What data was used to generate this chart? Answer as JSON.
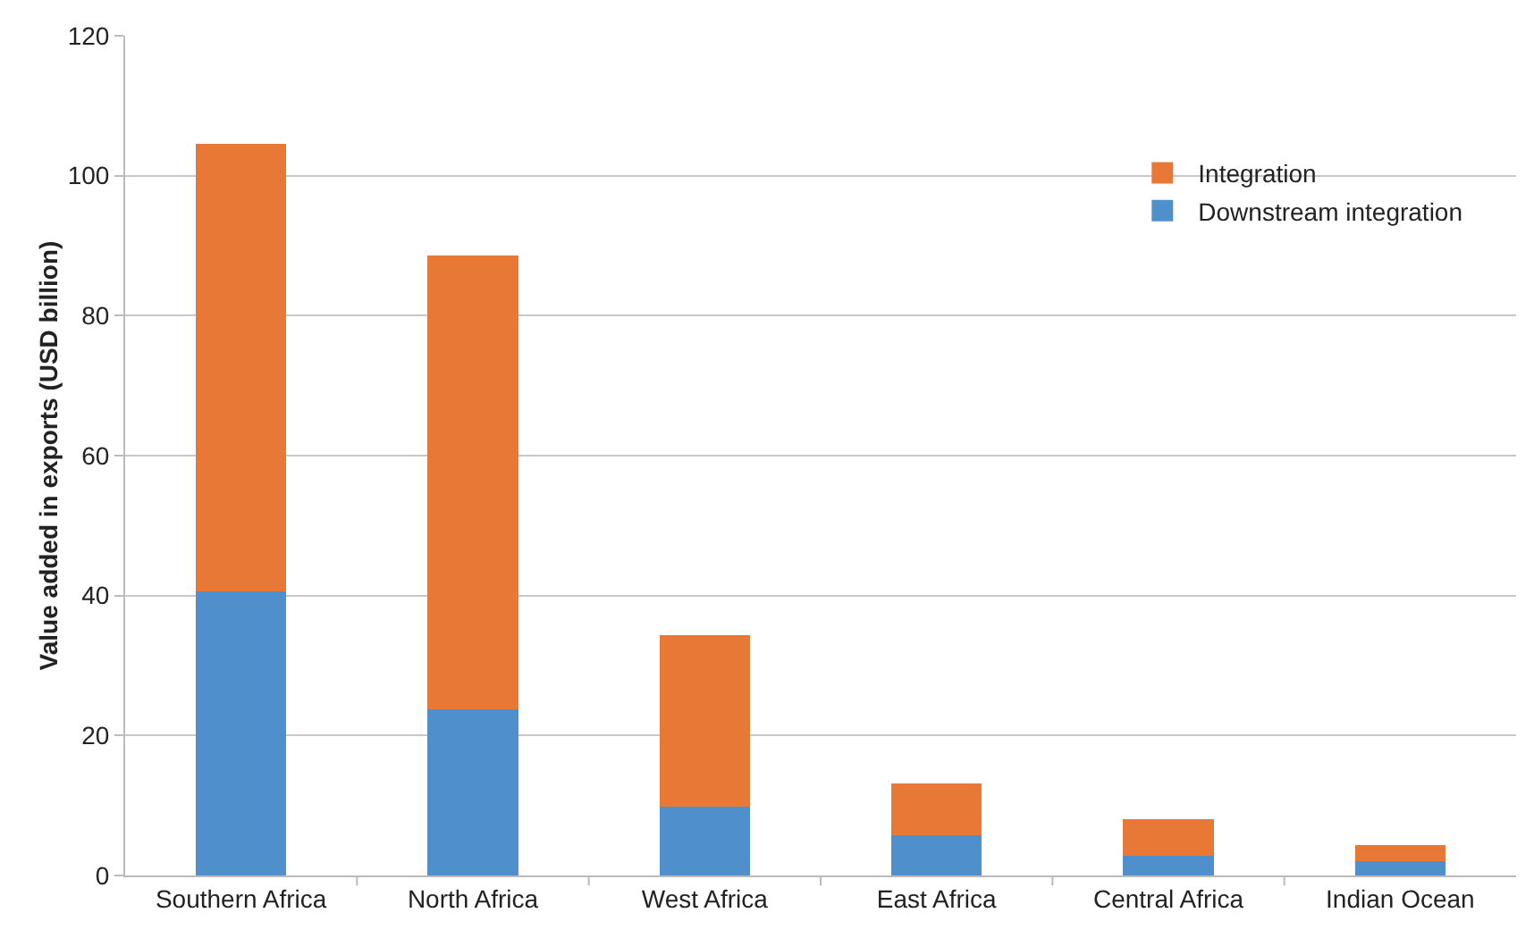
{
  "chart_data": {
    "type": "bar",
    "stacked": true,
    "ylabel": "Value added in exports (USD billion)",
    "categories": [
      "Southern Africa",
      "North Africa",
      "West Africa",
      "East Africa",
      "Central Africa",
      "Indian Ocean"
    ],
    "series": [
      {
        "name": "Downstream integration",
        "color": "#4f8fcc",
        "values": [
          40.6,
          23.8,
          9.8,
          5.8,
          2.8,
          2.1
        ]
      },
      {
        "name": "Integration",
        "color": "#e87836",
        "values": [
          63.9,
          64.8,
          24.5,
          7.3,
          5.2,
          2.2
        ]
      }
    ],
    "ylim": [
      0,
      120
    ],
    "yticks": [
      0,
      20,
      40,
      60,
      80,
      100,
      120
    ],
    "grid": "y",
    "legend": "top right"
  }
}
